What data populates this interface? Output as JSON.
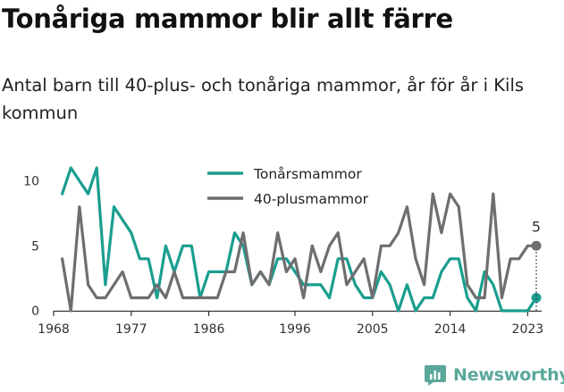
{
  "title": "Tonåriga mammor blir allt färre",
  "subtitle": "Antal barn till 40-plus- och tonåriga mammor, år för år i Kils kommun",
  "brand": "Newsworthy",
  "chart_data": {
    "type": "line",
    "x_ticks": [
      1968,
      1977,
      1986,
      1996,
      2005,
      2014,
      2023
    ],
    "y_ticks": [
      0,
      5,
      10
    ],
    "ylim": [
      0,
      11
    ],
    "xlim": [
      1968,
      2024
    ],
    "grid": false,
    "legend_position": "top-center",
    "end_label": "5",
    "series": [
      {
        "name": "Tonårsmammor",
        "color": "#1a9e8f",
        "x": [
          1969,
          1970,
          1971,
          1972,
          1973,
          1974,
          1975,
          1976,
          1977,
          1978,
          1979,
          1980,
          1981,
          1982,
          1983,
          1984,
          1985,
          1986,
          1987,
          1988,
          1989,
          1990,
          1991,
          1992,
          1993,
          1994,
          1995,
          1996,
          1997,
          1998,
          1999,
          2000,
          2001,
          2002,
          2003,
          2004,
          2005,
          2006,
          2007,
          2008,
          2009,
          2010,
          2011,
          2012,
          2013,
          2014,
          2015,
          2016,
          2017,
          2018,
          2019,
          2020,
          2021,
          2022,
          2023,
          2024
        ],
        "values": [
          9,
          11,
          10,
          9,
          11,
          2,
          8,
          7,
          6,
          4,
          4,
          1,
          5,
          3,
          5,
          5,
          1,
          3,
          3,
          3,
          6,
          5,
          2,
          3,
          2,
          4,
          4,
          3,
          2,
          2,
          2,
          1,
          4,
          4,
          2,
          1,
          1,
          3,
          2,
          0,
          2,
          0,
          1,
          1,
          3,
          4,
          4,
          1,
          0,
          3,
          2,
          0,
          0,
          0,
          0,
          1
        ]
      },
      {
        "name": "40-plusmammor",
        "color": "#6e6e70",
        "x": [
          1969,
          1970,
          1971,
          1972,
          1973,
          1974,
          1975,
          1976,
          1977,
          1978,
          1979,
          1980,
          1981,
          1982,
          1983,
          1984,
          1985,
          1986,
          1987,
          1988,
          1989,
          1990,
          1991,
          1992,
          1993,
          1994,
          1995,
          1996,
          1997,
          1998,
          1999,
          2000,
          2001,
          2002,
          2003,
          2004,
          2005,
          2006,
          2007,
          2008,
          2009,
          2010,
          2011,
          2012,
          2013,
          2014,
          2015,
          2016,
          2017,
          2018,
          2019,
          2020,
          2021,
          2022,
          2023,
          2024
        ],
        "values": [
          4,
          0,
          8,
          2,
          1,
          1,
          2,
          3,
          1,
          1,
          1,
          2,
          1,
          3,
          1,
          1,
          1,
          1,
          1,
          3,
          3,
          6,
          2,
          3,
          2,
          6,
          3,
          4,
          1,
          5,
          3,
          5,
          6,
          2,
          3,
          4,
          1,
          5,
          5,
          6,
          8,
          4,
          2,
          9,
          6,
          9,
          8,
          2,
          1,
          1,
          9,
          1,
          4,
          4,
          5,
          5
        ]
      }
    ]
  }
}
